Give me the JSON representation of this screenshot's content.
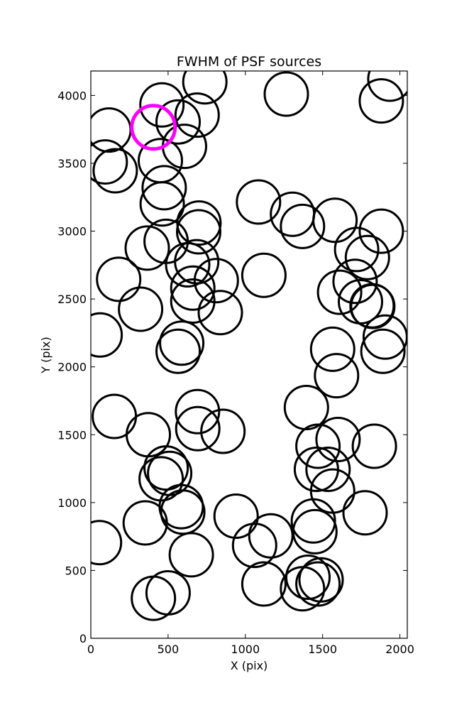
{
  "chart_data": {
    "type": "scatter",
    "title": "FWHM of PSF sources",
    "xlabel": "X (pix)",
    "ylabel": "Y (pix)",
    "xlim": [
      0,
      2048
    ],
    "ylim": [
      0,
      4180
    ],
    "xticks": [
      0,
      500,
      1000,
      1500,
      2000
    ],
    "yticks": [
      0,
      500,
      1000,
      1500,
      2000,
      2500,
      3000,
      3500,
      4000
    ],
    "grid": false,
    "marker": "open-circle",
    "marker_radius": 140,
    "points": [
      [
        460,
        3930
      ],
      [
        738,
        4100
      ],
      [
        1265,
        4010
      ],
      [
        1880,
        3960
      ],
      [
        1935,
        4120
      ],
      [
        117,
        3745
      ],
      [
        565,
        3805
      ],
      [
        688,
        3855
      ],
      [
        606,
        3625
      ],
      [
        450,
        3520
      ],
      [
        93,
        3510
      ],
      [
        158,
        3445
      ],
      [
        475,
        3320
      ],
      [
        462,
        3200
      ],
      [
        1085,
        3215
      ],
      [
        1305,
        3125
      ],
      [
        1370,
        3035
      ],
      [
        1580,
        3080
      ],
      [
        1880,
        3000
      ],
      [
        700,
        3060
      ],
      [
        698,
        2995
      ],
      [
        365,
        2875
      ],
      [
        487,
        2925
      ],
      [
        627,
        2752
      ],
      [
        685,
        2775
      ],
      [
        1720,
        2865
      ],
      [
        1790,
        2805
      ],
      [
        180,
        2645
      ],
      [
        1120,
        2675
      ],
      [
        812,
        2635
      ],
      [
        660,
        2580
      ],
      [
        660,
        2485
      ],
      [
        322,
        2425
      ],
      [
        838,
        2400
      ],
      [
        1610,
        2550
      ],
      [
        1710,
        2630
      ],
      [
        1745,
        2480
      ],
      [
        1820,
        2450
      ],
      [
        1825,
        2445
      ],
      [
        60,
        2235
      ],
      [
        588,
        2175
      ],
      [
        565,
        2115
      ],
      [
        1565,
        2130
      ],
      [
        1590,
        1935
      ],
      [
        1905,
        2220
      ],
      [
        1890,
        2115
      ],
      [
        152,
        1635
      ],
      [
        690,
        1670
      ],
      [
        692,
        1545
      ],
      [
        855,
        1525
      ],
      [
        372,
        1500
      ],
      [
        1395,
        1700
      ],
      [
        1470,
        1415
      ],
      [
        1600,
        1465
      ],
      [
        1835,
        1415
      ],
      [
        487,
        1255
      ],
      [
        510,
        1215
      ],
      [
        455,
        1175
      ],
      [
        1460,
        1245
      ],
      [
        1535,
        1245
      ],
      [
        1565,
        1085
      ],
      [
        585,
        970
      ],
      [
        595,
        930
      ],
      [
        352,
        850
      ],
      [
        940,
        900
      ],
      [
        1775,
        925
      ],
      [
        56,
        705
      ],
      [
        650,
        615
      ],
      [
        1060,
        685
      ],
      [
        1165,
        755
      ],
      [
        1440,
        865
      ],
      [
        1450,
        785
      ],
      [
        500,
        335
      ],
      [
        405,
        295
      ],
      [
        1120,
        400
      ],
      [
        1405,
        450
      ],
      [
        1370,
        365
      ],
      [
        1490,
        430
      ],
      [
        1470,
        400
      ]
    ],
    "highlight": {
      "point": [
        405,
        3765
      ],
      "color": "#ff00ff"
    },
    "colors": {
      "marker": "#000000",
      "highlight": "#ff00ff",
      "axes": "#000000",
      "background": "#ffffff"
    }
  }
}
